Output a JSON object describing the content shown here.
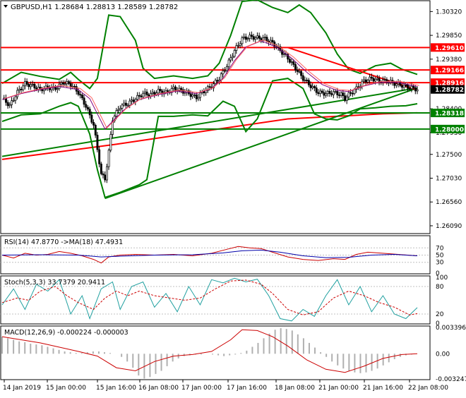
{
  "chart_data": {
    "type": "candlestick",
    "symbol_header": "GBPUSD,H1  1.28684  1.28813  1.28589  1.28782",
    "price_axis_ticks": [
      "1.30320",
      "1.29850",
      "1.29380",
      "1.28400",
      "1.27930",
      "1.27500",
      "1.27030",
      "1.26560",
      "1.26090"
    ],
    "ylim": [
      1.2595,
      1.3052
    ],
    "level_labels": [
      {
        "text": "1.29610",
        "value": 1.2961,
        "color": "#ff0000",
        "kind": "line"
      },
      {
        "text": "1.29166",
        "value": 1.29166,
        "color": "#ff0000",
        "kind": "line"
      },
      {
        "text": "1.28916",
        "value": 1.28916,
        "color": "#ff0000",
        "kind": "line"
      },
      {
        "text": "1.28782",
        "value": 1.28782,
        "color": "#000000",
        "kind": "current"
      },
      {
        "text": "1.28318",
        "value": 1.28318,
        "color": "#008000",
        "kind": "line"
      },
      {
        "text": "1.28000",
        "value": 1.28,
        "color": "#008000",
        "kind": "line"
      }
    ],
    "time_labels": [
      "14 Jan 2019",
      "15 Jan 00:00",
      "15 Jan 16:00",
      "16 Jan 08:00",
      "17 Jan 00:00",
      "17 Jan 16:00",
      "18 Jan 08:00",
      "21 Jan 00:00",
      "21 Jan 16:00",
      "22 Jan 08:00"
    ],
    "close_path": [
      [
        0,
        1.2861
      ],
      [
        4,
        1.2846
      ],
      [
        8,
        1.2873
      ],
      [
        12,
        1.289
      ],
      [
        16,
        1.2885
      ],
      [
        20,
        1.2878
      ],
      [
        24,
        1.2882
      ],
      [
        28,
        1.288
      ],
      [
        32,
        1.2892
      ],
      [
        36,
        1.2888
      ],
      [
        40,
        1.2872
      ],
      [
        44,
        1.2845
      ],
      [
        48,
        1.2808
      ],
      [
        50,
        1.276
      ],
      [
        52,
        1.271
      ],
      [
        54,
        1.2702
      ],
      [
        56,
        1.2755
      ],
      [
        58,
        1.282
      ],
      [
        62,
        1.2845
      ],
      [
        66,
        1.285
      ],
      [
        70,
        1.286
      ],
      [
        74,
        1.287
      ],
      [
        78,
        1.2868
      ],
      [
        82,
        1.2875
      ],
      [
        86,
        1.2872
      ],
      [
        90,
        1.288
      ],
      [
        94,
        1.2876
      ],
      [
        98,
        1.287
      ],
      [
        102,
        1.2862
      ],
      [
        106,
        1.2875
      ],
      [
        110,
        1.2885
      ],
      [
        114,
        1.29
      ],
      [
        118,
        1.2925
      ],
      [
        122,
        1.2955
      ],
      [
        126,
        1.2978
      ],
      [
        130,
        1.2982
      ],
      [
        134,
        1.298
      ],
      [
        138,
        1.2978
      ],
      [
        142,
        1.297
      ],
      [
        146,
        1.2955
      ],
      [
        150,
        1.294
      ],
      [
        154,
        1.292
      ],
      [
        158,
        1.29
      ],
      [
        162,
        1.2885
      ],
      [
        166,
        1.2872
      ],
      [
        170,
        1.287
      ],
      [
        174,
        1.2872
      ],
      [
        178,
        1.2868
      ],
      [
        180,
        1.286
      ],
      [
        182,
        1.2868
      ],
      [
        186,
        1.288
      ],
      [
        190,
        1.2895
      ],
      [
        194,
        1.29
      ],
      [
        198,
        1.2895
      ],
      [
        202,
        1.2895
      ],
      [
        206,
        1.289
      ],
      [
        210,
        1.2886
      ],
      [
        214,
        1.2882
      ],
      [
        218,
        1.2878
      ]
    ],
    "ma_path": [
      [
        0,
        1.2858
      ],
      [
        10,
        1.287
      ],
      [
        20,
        1.2878
      ],
      [
        30,
        1.2884
      ],
      [
        40,
        1.2878
      ],
      [
        46,
        1.286
      ],
      [
        50,
        1.283
      ],
      [
        54,
        1.28
      ],
      [
        58,
        1.2815
      ],
      [
        64,
        1.2838
      ],
      [
        72,
        1.2858
      ],
      [
        82,
        1.2868
      ],
      [
        92,
        1.2875
      ],
      [
        102,
        1.287
      ],
      [
        110,
        1.288
      ],
      [
        116,
        1.29
      ],
      [
        122,
        1.2935
      ],
      [
        128,
        1.2962
      ],
      [
        136,
        1.2974
      ],
      [
        144,
        1.2962
      ],
      [
        152,
        1.294
      ],
      [
        160,
        1.2912
      ],
      [
        168,
        1.2888
      ],
      [
        176,
        1.2876
      ],
      [
        182,
        1.2874
      ],
      [
        190,
        1.2885
      ],
      [
        198,
        1.2892
      ],
      [
        208,
        1.2892
      ],
      [
        218,
        1.2884
      ]
    ],
    "bollinger_upper": [
      [
        0,
        1.289
      ],
      [
        10,
        1.2912
      ],
      [
        20,
        1.2904
      ],
      [
        30,
        1.2898
      ],
      [
        36,
        1.2912
      ],
      [
        40,
        1.2898
      ],
      [
        46,
        1.288
      ],
      [
        50,
        1.29
      ],
      [
        56,
        1.3025
      ],
      [
        62,
        1.3022
      ],
      [
        70,
        1.2975
      ],
      [
        74,
        1.292
      ],
      [
        80,
        1.29
      ],
      [
        90,
        1.2905
      ],
      [
        100,
        1.29
      ],
      [
        108,
        1.2905
      ],
      [
        114,
        1.293
      ],
      [
        120,
        1.2985
      ],
      [
        126,
        1.3052
      ],
      [
        134,
        1.3055
      ],
      [
        142,
        1.304
      ],
      [
        150,
        1.303
      ],
      [
        156,
        1.3045
      ],
      [
        162,
        1.303
      ],
      [
        170,
        1.299
      ],
      [
        176,
        1.2948
      ],
      [
        182,
        1.2918
      ],
      [
        188,
        1.291
      ],
      [
        196,
        1.2925
      ],
      [
        204,
        1.293
      ],
      [
        210,
        1.2918
      ],
      [
        218,
        1.2908
      ]
    ],
    "bollinger_lower": [
      [
        0,
        1.2815
      ],
      [
        10,
        1.2828
      ],
      [
        20,
        1.283
      ],
      [
        30,
        1.2845
      ],
      [
        36,
        1.2852
      ],
      [
        40,
        1.2845
      ],
      [
        46,
        1.279
      ],
      [
        50,
        1.272
      ],
      [
        54,
        1.2665
      ],
      [
        62,
        1.2675
      ],
      [
        72,
        1.269
      ],
      [
        76,
        1.27
      ],
      [
        82,
        1.2825
      ],
      [
        90,
        1.2825
      ],
      [
        100,
        1.2828
      ],
      [
        108,
        1.2826
      ],
      [
        116,
        1.2855
      ],
      [
        122,
        1.2845
      ],
      [
        128,
        1.2795
      ],
      [
        134,
        1.282
      ],
      [
        142,
        1.2895
      ],
      [
        150,
        1.29
      ],
      [
        158,
        1.288
      ],
      [
        164,
        1.283
      ],
      [
        170,
        1.282
      ],
      [
        176,
        1.2818
      ],
      [
        182,
        1.2826
      ],
      [
        188,
        1.284
      ],
      [
        196,
        1.2842
      ],
      [
        204,
        1.2845
      ],
      [
        212,
        1.2846
      ],
      [
        218,
        1.285
      ]
    ],
    "ma_slow_green": [
      [
        0,
        1.2746
      ],
      [
        218,
        1.2881
      ]
    ],
    "ma_slow_red": [
      [
        0,
        1.274
      ],
      [
        60,
        1.277
      ],
      [
        110,
        1.2798
      ],
      [
        150,
        1.282
      ],
      [
        200,
        1.283
      ],
      [
        218,
        1.2832
      ]
    ],
    "trendlines": [
      {
        "from": [
          54,
          1.2663
        ],
        "to": [
          218,
          1.2881
        ],
        "color": "#008000"
      },
      {
        "from": [
          150,
          1.2961
        ],
        "to": [
          218,
          1.2877
        ],
        "color": "#ff0000"
      }
    ],
    "rsi": {
      "label": "RSI(14) 47.8770  ->MA(18) 47.4931",
      "ticks": [
        "70",
        "50",
        "30",
        "0"
      ],
      "rsi_path": [
        [
          0,
          50
        ],
        [
          6,
          42
        ],
        [
          12,
          55
        ],
        [
          18,
          50
        ],
        [
          24,
          52
        ],
        [
          30,
          60
        ],
        [
          36,
          55
        ],
        [
          42,
          48
        ],
        [
          48,
          38
        ],
        [
          52,
          28
        ],
        [
          56,
          45
        ],
        [
          62,
          50
        ],
        [
          70,
          52
        ],
        [
          80,
          50
        ],
        [
          90,
          52
        ],
        [
          100,
          48
        ],
        [
          110,
          55
        ],
        [
          118,
          66
        ],
        [
          124,
          74
        ],
        [
          130,
          70
        ],
        [
          136,
          68
        ],
        [
          142,
          58
        ],
        [
          150,
          45
        ],
        [
          158,
          38
        ],
        [
          166,
          35
        ],
        [
          174,
          40
        ],
        [
          180,
          38
        ],
        [
          186,
          52
        ],
        [
          192,
          58
        ],
        [
          200,
          55
        ],
        [
          208,
          52
        ],
        [
          218,
          48
        ]
      ],
      "ma_path": [
        [
          0,
          50
        ],
        [
          20,
          51
        ],
        [
          40,
          50
        ],
        [
          52,
          45
        ],
        [
          62,
          47
        ],
        [
          80,
          50
        ],
        [
          100,
          51
        ],
        [
          116,
          56
        ],
        [
          126,
          62
        ],
        [
          136,
          64
        ],
        [
          146,
          58
        ],
        [
          158,
          48
        ],
        [
          170,
          43
        ],
        [
          182,
          44
        ],
        [
          194,
          50
        ],
        [
          206,
          52
        ],
        [
          218,
          48
        ]
      ]
    },
    "stochastic": {
      "label": "Stoch(5,3,3) 33.7379 20.9411",
      "ticks": [
        "100",
        "80",
        "20",
        "0"
      ],
      "main_path": [
        [
          0,
          40
        ],
        [
          6,
          75
        ],
        [
          12,
          30
        ],
        [
          18,
          85
        ],
        [
          24,
          70
        ],
        [
          30,
          95
        ],
        [
          36,
          20
        ],
        [
          42,
          60
        ],
        [
          46,
          10
        ],
        [
          52,
          75
        ],
        [
          58,
          90
        ],
        [
          62,
          30
        ],
        [
          68,
          80
        ],
        [
          74,
          90
        ],
        [
          80,
          35
        ],
        [
          86,
          65
        ],
        [
          92,
          25
        ],
        [
          98,
          80
        ],
        [
          104,
          40
        ],
        [
          110,
          95
        ],
        [
          116,
          88
        ],
        [
          122,
          98
        ],
        [
          128,
          90
        ],
        [
          134,
          96
        ],
        [
          140,
          60
        ],
        [
          146,
          10
        ],
        [
          152,
          5
        ],
        [
          158,
          30
        ],
        [
          164,
          15
        ],
        [
          170,
          60
        ],
        [
          176,
          95
        ],
        [
          182,
          40
        ],
        [
          188,
          80
        ],
        [
          194,
          25
        ],
        [
          200,
          60
        ],
        [
          206,
          20
        ],
        [
          212,
          10
        ],
        [
          218,
          34
        ]
      ],
      "signal_path": [
        [
          0,
          45
        ],
        [
          8,
          55
        ],
        [
          14,
          50
        ],
        [
          20,
          70
        ],
        [
          28,
          80
        ],
        [
          34,
          60
        ],
        [
          40,
          45
        ],
        [
          48,
          30
        ],
        [
          54,
          55
        ],
        [
          60,
          70
        ],
        [
          66,
          60
        ],
        [
          72,
          70
        ],
        [
          80,
          60
        ],
        [
          88,
          55
        ],
        [
          96,
          50
        ],
        [
          104,
          55
        ],
        [
          112,
          75
        ],
        [
          120,
          92
        ],
        [
          128,
          94
        ],
        [
          136,
          85
        ],
        [
          142,
          65
        ],
        [
          150,
          30
        ],
        [
          158,
          18
        ],
        [
          166,
          25
        ],
        [
          174,
          55
        ],
        [
          182,
          70
        ],
        [
          190,
          60
        ],
        [
          198,
          45
        ],
        [
          206,
          35
        ],
        [
          214,
          18
        ],
        [
          218,
          21
        ]
      ]
    },
    "macd": {
      "label": "MACD(12,26,9) -0.000224 -0.000003",
      "ticks": [
        "0.003396",
        "0.00",
        "-0.003247"
      ],
      "hist": [
        0.0022,
        0.002,
        0.0018,
        0.0016,
        0.0015,
        0.0013,
        0.0012,
        0.0011,
        0.0009,
        0.0007,
        0.0005,
        0.0003,
        0.0002,
        0.0001,
        0.0001,
        0.0002,
        0.0003,
        0.0003,
        0.0002,
        0.0001,
        0.0,
        -0.0004,
        -0.001,
        -0.0018,
        -0.0028,
        -0.0032,
        -0.003,
        -0.0026,
        -0.0022,
        -0.0016,
        -0.001,
        -0.0006,
        -0.0003,
        -0.0002,
        -0.0001,
        -0.0001,
        0.0,
        -0.0001,
        -0.0002,
        -0.0003,
        -0.0002,
        -0.0001,
        0.0001,
        0.0004,
        0.0009,
        0.0014,
        0.002,
        0.0026,
        0.0031,
        0.0033,
        0.0032,
        0.003,
        0.0025,
        0.002,
        0.0014,
        0.0008,
        0.0002,
        -0.0004,
        -0.001,
        -0.0015,
        -0.0019,
        -0.0022,
        -0.0024,
        -0.0025,
        -0.0024,
        -0.0022,
        -0.0019,
        -0.0015,
        -0.0011,
        -0.0007,
        -0.0004,
        -0.0002,
        -0.0001,
        0.0
      ],
      "signal_path": [
        [
          0,
          0.0022
        ],
        [
          20,
          0.0014
        ],
        [
          40,
          0.0003
        ],
        [
          50,
          -0.0003
        ],
        [
          60,
          -0.0018
        ],
        [
          70,
          -0.0022
        ],
        [
          80,
          -0.001
        ],
        [
          90,
          -0.0003
        ],
        [
          100,
          -0.0001
        ],
        [
          110,
          0.0003
        ],
        [
          120,
          0.0018
        ],
        [
          126,
          0.0031
        ],
        [
          134,
          0.003
        ],
        [
          142,
          0.0022
        ],
        [
          150,
          0.001
        ],
        [
          160,
          -0.0008
        ],
        [
          170,
          -0.002
        ],
        [
          180,
          -0.0024
        ],
        [
          190,
          -0.0016
        ],
        [
          200,
          -0.0006
        ],
        [
          210,
          -0.0001
        ],
        [
          218,
          0.0
        ]
      ]
    }
  }
}
